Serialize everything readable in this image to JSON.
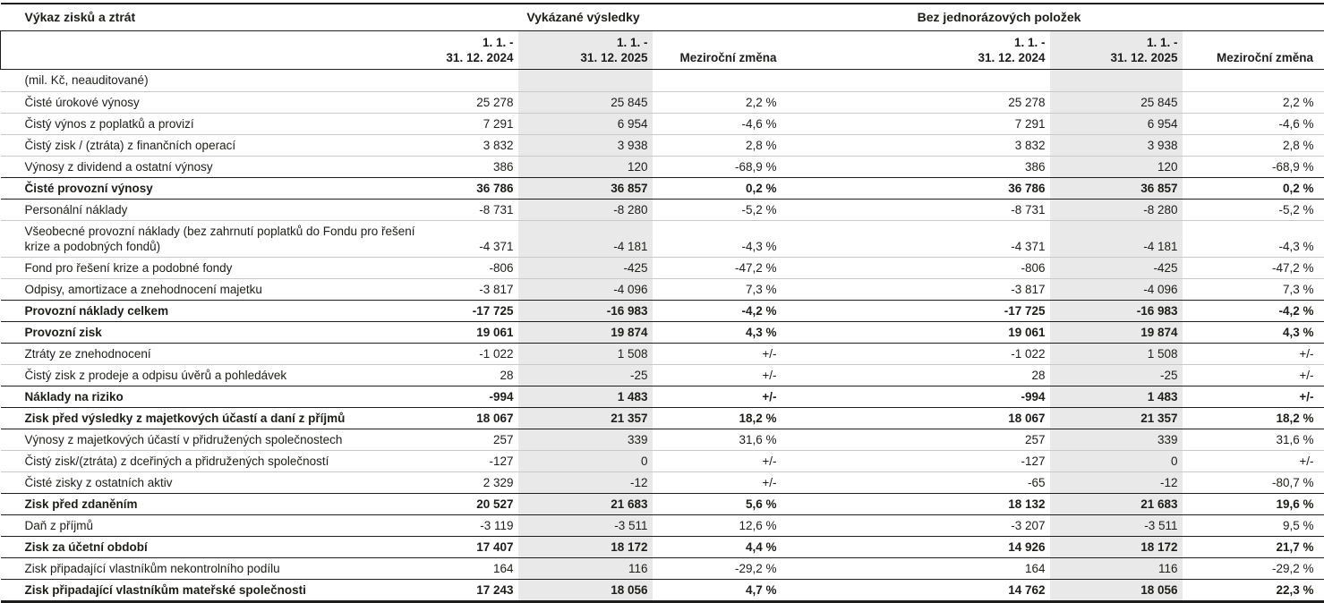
{
  "page": {
    "title": "Výkaz zisků a ztrát",
    "unit_note": "(mil. Kč, neauditované)"
  },
  "columns": {
    "group1": {
      "label": "Vykázané výsledky",
      "period_2024": "1. 1. -\n31. 12. 2024",
      "period_2025": "1. 1. -\n31. 12. 2025",
      "change": "Meziroční změna"
    },
    "group2": {
      "label": "Bez jednorázových položek",
      "period_2024": "1. 1. -\n31. 12. 2024",
      "period_2025": "1. 1. -\n31. 12. 2025",
      "change": "Meziroční změna"
    }
  },
  "table": {
    "rows": [
      {
        "label": "Čisté úrokové výnosy",
        "bold": false,
        "g1": [
          "25 278",
          "25 845",
          "2,2 %"
        ],
        "g2": [
          "25 278",
          "25 845",
          "2,2 %"
        ]
      },
      {
        "label": "Čistý výnos z poplatků a provizí",
        "bold": false,
        "g1": [
          "7 291",
          "6 954",
          "-4,6 %"
        ],
        "g2": [
          "7 291",
          "6 954",
          "-4,6 %"
        ]
      },
      {
        "label": "Čistý zisk / (ztráta) z finančních operací",
        "bold": false,
        "g1": [
          "3 832",
          "3 938",
          "2,8 %"
        ],
        "g2": [
          "3 832",
          "3 938",
          "2,8 %"
        ]
      },
      {
        "label": "Výnosy z dividend a ostatní výnosy",
        "bold": false,
        "g1": [
          "386",
          "120",
          "-68,9 %"
        ],
        "g2": [
          "386",
          "120",
          "-68,9 %"
        ]
      },
      {
        "label": "Čisté provozní výnosy",
        "bold": true,
        "g1": [
          "36 786",
          "36 857",
          "0,2 %"
        ],
        "g2": [
          "36 786",
          "36 857",
          "0,2 %"
        ]
      },
      {
        "label": "Personální náklady",
        "bold": false,
        "g1": [
          "-8 731",
          "-8 280",
          "-5,2 %"
        ],
        "g2": [
          "-8 731",
          "-8 280",
          "-5,2 %"
        ]
      },
      {
        "label": "Všeobecné provozní náklady (bez zahrnutí poplatků do Fondu pro řešení krize a podobných fondů)",
        "bold": false,
        "g1": [
          "-4 371",
          "-4 181",
          "-4,3 %"
        ],
        "g2": [
          "-4 371",
          "-4 181",
          "-4,3 %"
        ]
      },
      {
        "label": "Fond pro řešení krize a podobné fondy",
        "bold": false,
        "g1": [
          "-806",
          "-425",
          "-47,2 %"
        ],
        "g2": [
          "-806",
          "-425",
          "-47,2 %"
        ]
      },
      {
        "label": "Odpisy, amortizace a znehodnocení majetku",
        "bold": false,
        "g1": [
          "-3 817",
          "-4 096",
          "7,3 %"
        ],
        "g2": [
          "-3 817",
          "-4 096",
          "7,3 %"
        ]
      },
      {
        "label": "Provozní náklady celkem",
        "bold": true,
        "g1": [
          "-17 725",
          "-16 983",
          "-4,2 %"
        ],
        "g2": [
          "-17 725",
          "-16 983",
          "-4,2 %"
        ]
      },
      {
        "label": "Provozní zisk",
        "bold": true,
        "g1": [
          "19 061",
          "19 874",
          "4,3 %"
        ],
        "g2": [
          "19 061",
          "19 874",
          "4,3 %"
        ]
      },
      {
        "label": "Ztráty ze znehodnocení",
        "bold": false,
        "g1": [
          "-1 022",
          "1 508",
          "+/-"
        ],
        "g2": [
          "-1 022",
          "1 508",
          "+/-"
        ]
      },
      {
        "label": "Čistý zisk z prodeje a odpisu úvěrů a pohledávek",
        "bold": false,
        "g1": [
          "28",
          "-25",
          "+/-"
        ],
        "g2": [
          "28",
          "-25",
          "+/-"
        ]
      },
      {
        "label": "Náklady na riziko",
        "bold": true,
        "g1": [
          "-994",
          "1 483",
          "+/-"
        ],
        "g2": [
          "-994",
          "1 483",
          "+/-"
        ]
      },
      {
        "label": "Zisk před výsledky z majetkových účastí a daní z příjmů",
        "bold": true,
        "g1": [
          "18 067",
          "21 357",
          "18,2 %"
        ],
        "g2": [
          "18 067",
          "21 357",
          "18,2 %"
        ]
      },
      {
        "label": "Výnosy z majetkových účastí v přidružených společnostech",
        "bold": false,
        "g1": [
          "257",
          "339",
          "31,6 %"
        ],
        "g2": [
          "257",
          "339",
          "31,6 %"
        ]
      },
      {
        "label": "Čistý zisk/(ztráta) z dceřiných a přidružených společností",
        "bold": false,
        "g1": [
          "-127",
          "0",
          "+/-"
        ],
        "g2": [
          "-127",
          "0",
          "+/-"
        ]
      },
      {
        "label": "Čisté zisky z ostatních aktiv",
        "bold": false,
        "g1": [
          "2 329",
          "-12",
          "+/-"
        ],
        "g2": [
          "-65",
          "-12",
          "-80,7 %"
        ]
      },
      {
        "label": "Zisk před zdaněním",
        "bold": true,
        "g1": [
          "20 527",
          "21 683",
          "5,6 %"
        ],
        "g2": [
          "18 132",
          "21 683",
          "19,6 %"
        ]
      },
      {
        "label": "Daň z příjmů",
        "bold": false,
        "g1": [
          "-3 119",
          "-3 511",
          "12,6 %"
        ],
        "g2": [
          "-3 207",
          "-3 511",
          "9,5 %"
        ]
      },
      {
        "label": "Zisk za účetní období",
        "bold": true,
        "g1": [
          "17 407",
          "18 172",
          "4,4 %"
        ],
        "g2": [
          "14 926",
          "18 172",
          "21,7 %"
        ]
      },
      {
        "label": "Zisk připadající vlastníkům nekontrolního podílu",
        "bold": false,
        "g1": [
          "164",
          "116",
          "-29,2 %"
        ],
        "g2": [
          "164",
          "116",
          "-29,2 %"
        ]
      },
      {
        "label": "Zisk připadající vlastníkům mateřské společnosti",
        "bold": true,
        "g1": [
          "17 243",
          "18 056",
          "4,7 %"
        ],
        "g2": [
          "14 762",
          "18 056",
          "22,3 %"
        ]
      }
    ]
  },
  "colors": {
    "shade": "#e9e9e9",
    "text": "#1d1d1b",
    "light_line": "#c9c9c9",
    "dark_line": "#1d1d1b"
  }
}
